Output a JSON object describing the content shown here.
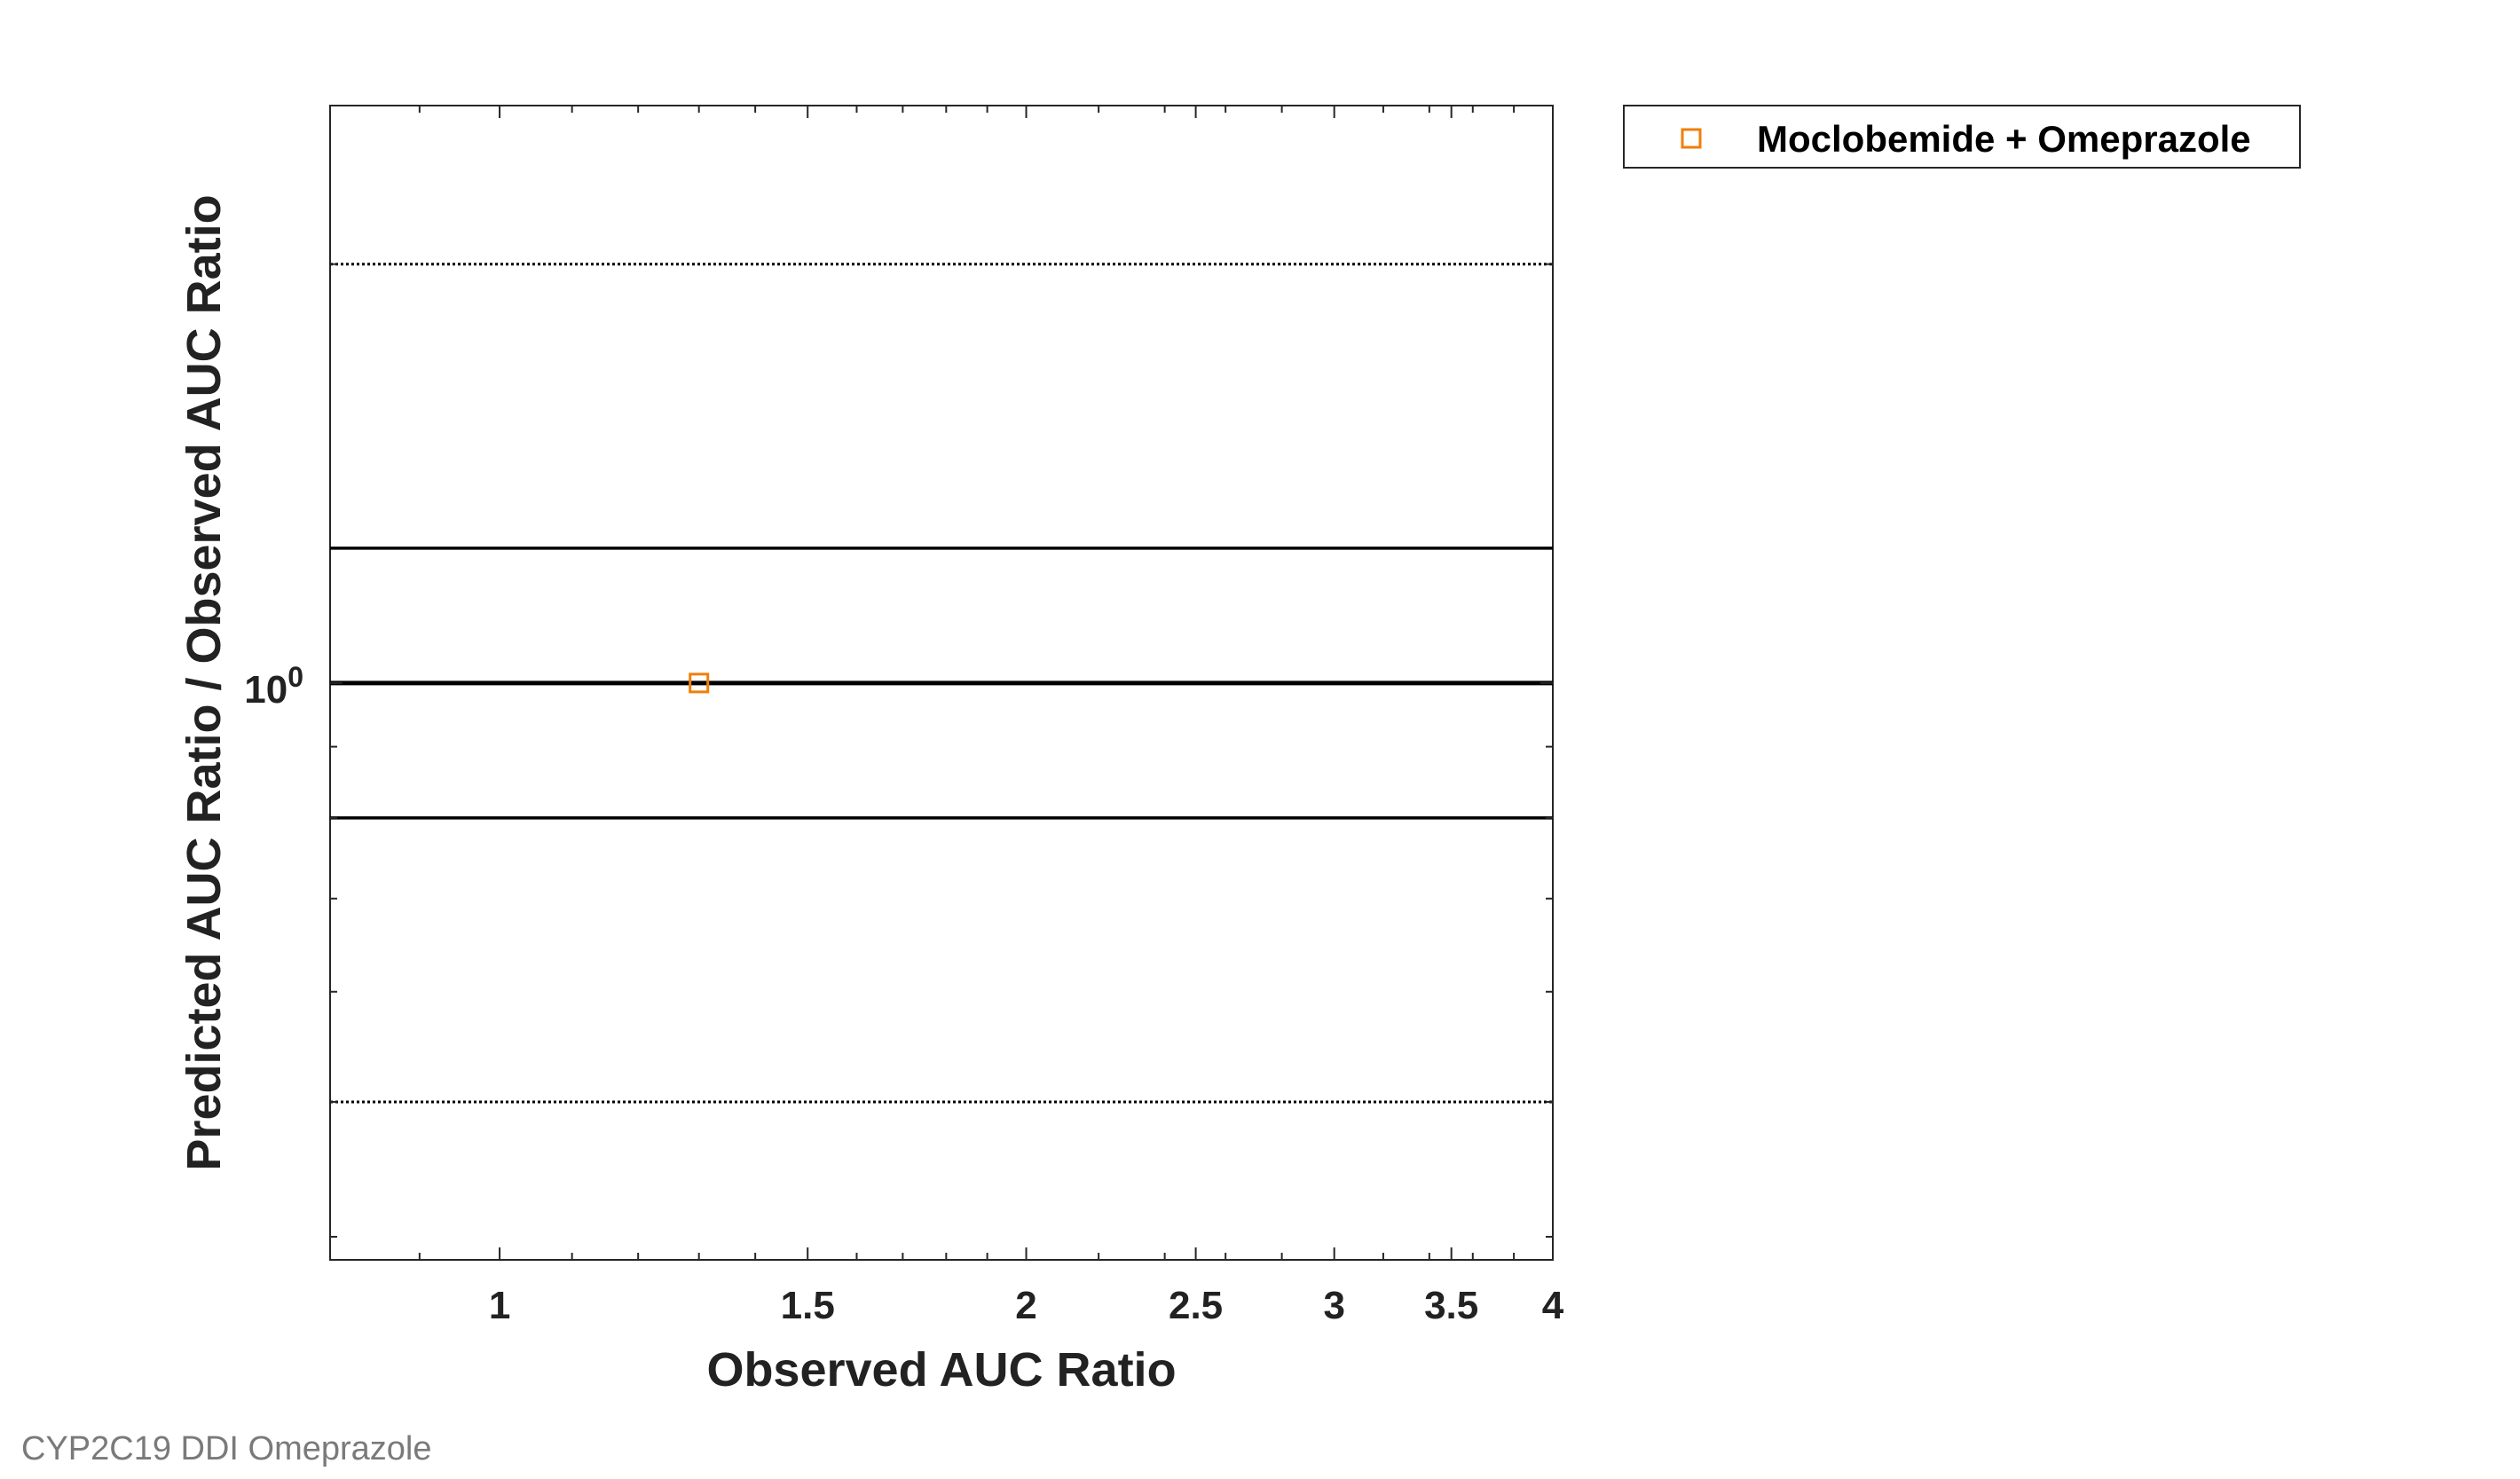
{
  "chart_data": {
    "type": "scatter",
    "x_scale": "log",
    "y_scale": "log",
    "xlabel": "Observed AUC Ratio",
    "ylabel": "Predicted AUC Ratio / Observed AUC Ratio",
    "xlim": [
      0.8,
      4
    ],
    "ylim": [
      0.385,
      2.6
    ],
    "x_ticks": [
      1,
      1.5,
      2,
      2.5,
      3,
      3.5,
      4
    ],
    "x_tick_labels": [
      "1",
      "1.5",
      "2",
      "2.5",
      "3",
      "3.5",
      "4"
    ],
    "y_tick_label": {
      "base": "10",
      "exponent": "0",
      "value": 1
    },
    "reference_lines": {
      "identity": 1,
      "two_fold_upper": 2,
      "two_fold_lower": 0.5
    },
    "guest_limits": {
      "delta": 1.25
    },
    "series": [
      {
        "name": "Moclobemide + Omeprazole",
        "marker": "square",
        "color": "#f07f09",
        "x": [
          1.3
        ],
        "y": [
          1.0
        ]
      }
    ],
    "legend": {
      "placement": "outside-top-right",
      "entries": [
        "Moclobemide + Omeprazole"
      ]
    }
  },
  "footer": {
    "text": "CYP2C19 DDI Omeprazole"
  },
  "colors": {
    "marker": "#f07f09",
    "line": "#000000",
    "axis": "#262626"
  }
}
